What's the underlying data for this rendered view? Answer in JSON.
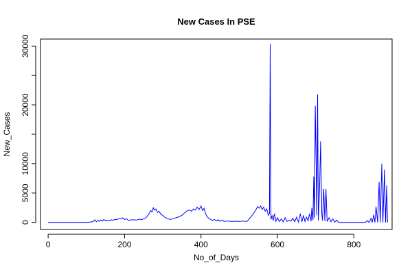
{
  "chart_data": {
    "type": "line",
    "title": "New Cases In PSE",
    "xlabel": "No_of_Days",
    "ylabel": "New_Cases",
    "xlim": [
      -20,
      900
    ],
    "ylim": [
      -1200,
      31200
    ],
    "x_ticks": [
      0,
      200,
      400,
      600,
      800
    ],
    "y_ticks": [
      0,
      5000,
      10000,
      20000,
      30000
    ],
    "y_minor_ticks": [
      15000,
      25000
    ],
    "grid": false,
    "legend": "none",
    "series": [
      {
        "color": "#0000ff",
        "points": [
          [
            0,
            0
          ],
          [
            60,
            0
          ],
          [
            100,
            0
          ],
          [
            110,
            50
          ],
          [
            118,
            150
          ],
          [
            122,
            450
          ],
          [
            126,
            120
          ],
          [
            130,
            350
          ],
          [
            134,
            180
          ],
          [
            138,
            420
          ],
          [
            142,
            250
          ],
          [
            146,
            500
          ],
          [
            150,
            280
          ],
          [
            155,
            380
          ],
          [
            160,
            300
          ],
          [
            165,
            450
          ],
          [
            170,
            350
          ],
          [
            175,
            520
          ],
          [
            180,
            480
          ],
          [
            185,
            650
          ],
          [
            190,
            600
          ],
          [
            195,
            780
          ],
          [
            200,
            500
          ],
          [
            205,
            620
          ],
          [
            210,
            350
          ],
          [
            220,
            450
          ],
          [
            230,
            400
          ],
          [
            240,
            550
          ],
          [
            245,
            480
          ],
          [
            250,
            600
          ],
          [
            255,
            750
          ],
          [
            260,
            1100
          ],
          [
            264,
            1500
          ],
          [
            268,
            2000
          ],
          [
            272,
            1800
          ],
          [
            275,
            2500
          ],
          [
            278,
            2100
          ],
          [
            282,
            2300
          ],
          [
            286,
            1700
          ],
          [
            290,
            1900
          ],
          [
            295,
            1400
          ],
          [
            300,
            1200
          ],
          [
            305,
            900
          ],
          [
            310,
            700
          ],
          [
            315,
            600
          ],
          [
            320,
            500
          ],
          [
            330,
            700
          ],
          [
            340,
            900
          ],
          [
            350,
            1200
          ],
          [
            355,
            1500
          ],
          [
            360,
            1800
          ],
          [
            365,
            2000
          ],
          [
            370,
            2100
          ],
          [
            375,
            1900
          ],
          [
            380,
            2300
          ],
          [
            385,
            2100
          ],
          [
            390,
            2600
          ],
          [
            395,
            2200
          ],
          [
            400,
            2800
          ],
          [
            404,
            2000
          ],
          [
            408,
            2400
          ],
          [
            412,
            1500
          ],
          [
            416,
            1000
          ],
          [
            420,
            700
          ],
          [
            425,
            500
          ],
          [
            430,
            350
          ],
          [
            435,
            500
          ],
          [
            440,
            250
          ],
          [
            445,
            450
          ],
          [
            450,
            200
          ],
          [
            455,
            400
          ],
          [
            460,
            180
          ],
          [
            470,
            250
          ],
          [
            480,
            150
          ],
          [
            490,
            200
          ],
          [
            500,
            150
          ],
          [
            510,
            220
          ],
          [
            520,
            180
          ],
          [
            525,
            500
          ],
          [
            530,
            900
          ],
          [
            535,
            1300
          ],
          [
            540,
            1800
          ],
          [
            545,
            2300
          ],
          [
            548,
            2700
          ],
          [
            552,
            2400
          ],
          [
            556,
            2800
          ],
          [
            560,
            2200
          ],
          [
            564,
            2600
          ],
          [
            568,
            1900
          ],
          [
            572,
            2300
          ],
          [
            576,
            1200
          ],
          [
            579,
            1500
          ],
          [
            581,
            30400
          ],
          [
            583,
            500
          ],
          [
            586,
            1200
          ],
          [
            589,
            300
          ],
          [
            592,
            1500
          ],
          [
            596,
            200
          ],
          [
            600,
            800
          ],
          [
            605,
            150
          ],
          [
            610,
            600
          ],
          [
            615,
            100
          ],
          [
            620,
            800
          ],
          [
            625,
            150
          ],
          [
            630,
            400
          ],
          [
            635,
            200
          ],
          [
            640,
            700
          ],
          [
            645,
            100
          ],
          [
            650,
            900
          ],
          [
            655,
            50
          ],
          [
            660,
            1500
          ],
          [
            664,
            100
          ],
          [
            668,
            1200
          ],
          [
            672,
            150
          ],
          [
            676,
            900
          ],
          [
            680,
            300
          ],
          [
            684,
            1500
          ],
          [
            688,
            200
          ],
          [
            690,
            2500
          ],
          [
            693,
            400
          ],
          [
            695,
            7800
          ],
          [
            697,
            800
          ],
          [
            699,
            19800
          ],
          [
            701,
            10600
          ],
          [
            703,
            1200
          ],
          [
            705,
            21800
          ],
          [
            707,
            300
          ],
          [
            710,
            5300
          ],
          [
            713,
            13800
          ],
          [
            716,
            1500
          ],
          [
            718,
            300
          ],
          [
            721,
            5700
          ],
          [
            724,
            200
          ],
          [
            727,
            5700
          ],
          [
            730,
            150
          ],
          [
            735,
            800
          ],
          [
            740,
            100
          ],
          [
            745,
            600
          ],
          [
            750,
            50
          ],
          [
            755,
            400
          ],
          [
            760,
            0
          ],
          [
            770,
            0
          ],
          [
            790,
            0
          ],
          [
            810,
            0
          ],
          [
            820,
            0
          ],
          [
            830,
            0
          ],
          [
            835,
            300
          ],
          [
            840,
            0
          ],
          [
            845,
            700
          ],
          [
            848,
            0
          ],
          [
            852,
            1300
          ],
          [
            855,
            0
          ],
          [
            858,
            2700
          ],
          [
            862,
            0
          ],
          [
            866,
            6900
          ],
          [
            869,
            0
          ],
          [
            873,
            10000
          ],
          [
            876,
            0
          ],
          [
            880,
            9000
          ],
          [
            883,
            0
          ],
          [
            886,
            6300
          ],
          [
            888,
            0
          ]
        ]
      }
    ]
  }
}
